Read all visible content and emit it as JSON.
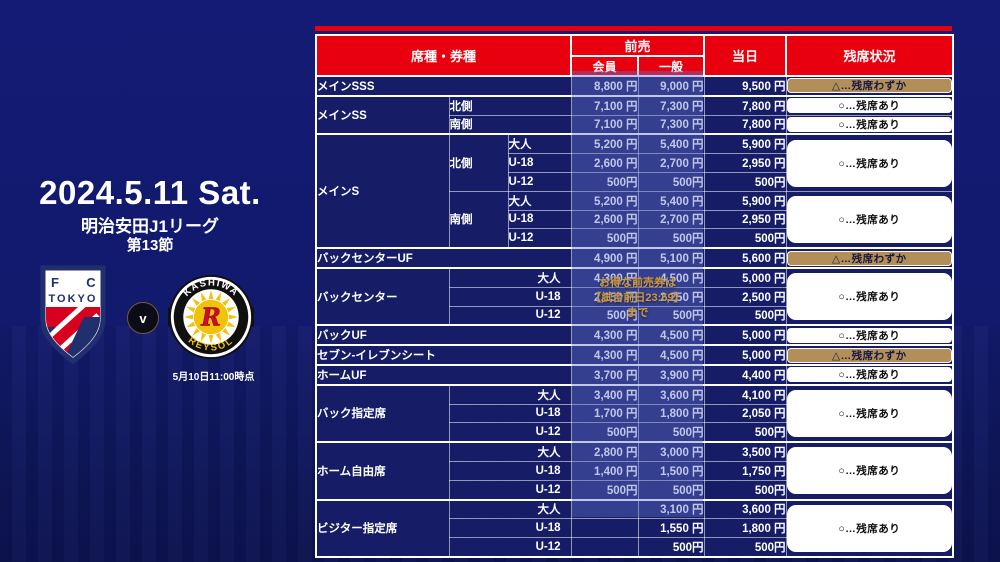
{
  "left_panel": {
    "date": "2024.5.11 Sat.",
    "league": "明治安田J1リーグ",
    "round": "第13節",
    "versus": "v",
    "as_of": "5月10日11:00時点",
    "home_logo": {
      "letter_f": "F",
      "letter_c": "C",
      "word": "TOKYO"
    },
    "away_logo": {
      "top": "KASHIWA",
      "bottom": "REYSOL",
      "letter": "R"
    }
  },
  "table": {
    "headers": {
      "seat": "席種・券種",
      "advance": "前売",
      "member": "会員",
      "general": "一般",
      "sameday": "当日",
      "availability": "残席状況"
    },
    "promo": {
      "lines": [
        "お得な前売券は",
        "【試合前日23:59】",
        "まで"
      ]
    },
    "availability_types": {
      "few": {
        "label": "△…残席わずか",
        "bg": "#b28e58",
        "fg": "#171744"
      },
      "available": {
        "label": "○…残席あり",
        "bg": "#ffffff",
        "fg": "#0d0d0d"
      }
    },
    "groups": [
      {
        "label": "メインSSS",
        "sections": [
          {
            "side": null,
            "availability": "few",
            "rows": [
              {
                "age": null,
                "member": "8,800 円",
                "general": "9,000 円",
                "sameday": "9,500 円"
              }
            ]
          }
        ]
      },
      {
        "label": "メインSS",
        "sections": [
          {
            "side": "北側",
            "availability": "available",
            "rows": [
              {
                "age": null,
                "member": "7,100 円",
                "general": "7,300 円",
                "sameday": "7,800 円"
              }
            ]
          },
          {
            "side": "南側",
            "availability": "available",
            "rows": [
              {
                "age": null,
                "member": "7,100 円",
                "general": "7,300 円",
                "sameday": "7,800 円"
              }
            ]
          }
        ]
      },
      {
        "label": "メインS",
        "sections": [
          {
            "side": "北側",
            "availability": "available",
            "rows": [
              {
                "age": "大人",
                "member": "5,200 円",
                "general": "5,400 円",
                "sameday": "5,900 円"
              },
              {
                "age": "U-18",
                "member": "2,600 円",
                "general": "2,700 円",
                "sameday": "2,950 円"
              },
              {
                "age": "U-12",
                "member": "500円",
                "general": "500円",
                "sameday": "500円"
              }
            ]
          },
          {
            "side": "南側",
            "availability": "available",
            "rows": [
              {
                "age": "大人",
                "member": "5,200 円",
                "general": "5,400 円",
                "sameday": "5,900 円"
              },
              {
                "age": "U-18",
                "member": "2,600 円",
                "general": "2,700 円",
                "sameday": "2,950 円"
              },
              {
                "age": "U-12",
                "member": "500円",
                "general": "500円",
                "sameday": "500円"
              }
            ]
          }
        ]
      },
      {
        "label": "バックセンターUF",
        "sections": [
          {
            "side": null,
            "availability": "few",
            "rows": [
              {
                "age": null,
                "member": "4,900 円",
                "general": "5,100 円",
                "sameday": "5,600 円"
              }
            ]
          }
        ]
      },
      {
        "label": "バックセンター",
        "sections": [
          {
            "side": null,
            "availability": "available",
            "rows": [
              {
                "age": "大人",
                "member": "4,300 円",
                "general": "4,500 円",
                "sameday": "5,000 円"
              },
              {
                "age": "U-18",
                "member": "2,150 円",
                "general": "2,250 円",
                "sameday": "2,500 円"
              },
              {
                "age": "U-12",
                "member": "500円",
                "general": "500円",
                "sameday": "500円"
              }
            ]
          }
        ]
      },
      {
        "label": "バックUF",
        "sections": [
          {
            "side": null,
            "availability": "available",
            "rows": [
              {
                "age": null,
                "member": "4,300 円",
                "general": "4,500 円",
                "sameday": "5,000 円"
              }
            ]
          }
        ]
      },
      {
        "label": "セブン-イレブンシート",
        "sections": [
          {
            "side": null,
            "availability": "few",
            "rows": [
              {
                "age": null,
                "member": "4,300 円",
                "general": "4,500 円",
                "sameday": "5,000 円"
              }
            ]
          }
        ]
      },
      {
        "label": "ホームUF",
        "sections": [
          {
            "side": null,
            "availability": "available",
            "rows": [
              {
                "age": null,
                "member": "3,700 円",
                "general": "3,900 円",
                "sameday": "4,400 円"
              }
            ]
          }
        ]
      },
      {
        "label": "バック指定席",
        "sections": [
          {
            "side": null,
            "availability": "available",
            "rows": [
              {
                "age": "大人",
                "member": "3,400 円",
                "general": "3,600 円",
                "sameday": "4,100 円"
              },
              {
                "age": "U-18",
                "member": "1,700 円",
                "general": "1,800 円",
                "sameday": "2,050 円"
              },
              {
                "age": "U-12",
                "member": "500円",
                "general": "500円",
                "sameday": "500円"
              }
            ]
          }
        ]
      },
      {
        "label": "ホーム自由席",
        "sections": [
          {
            "side": null,
            "availability": "available",
            "rows": [
              {
                "age": "大人",
                "member": "2,800 円",
                "general": "3,000 円",
                "sameday": "3,500 円"
              },
              {
                "age": "U-18",
                "member": "1,400 円",
                "general": "1,500 円",
                "sameday": "1,750 円"
              },
              {
                "age": "U-12",
                "member": "500円",
                "general": "500円",
                "sameday": "500円"
              }
            ]
          }
        ]
      },
      {
        "label": "ビジター指定席",
        "sections": [
          {
            "side": null,
            "availability": "available",
            "rows": [
              {
                "age": "大人",
                "member": "",
                "general": "3,100 円",
                "sameday": "3,600 円"
              },
              {
                "age": "U-18",
                "member": "",
                "general": "1,550 円",
                "sameday": "1,800 円"
              },
              {
                "age": "U-12",
                "member": "",
                "general": "500円",
                "sameday": "500円"
              }
            ]
          }
        ]
      }
    ]
  },
  "colors": {
    "page_bg": "#121a6e",
    "header_red": "#e8000f",
    "row_bg": "#161d66",
    "availability_few": "#b28e58",
    "promo_gold": "#d09a3c",
    "overlay_blue": "rgba(97,116,205,0.40)"
  }
}
